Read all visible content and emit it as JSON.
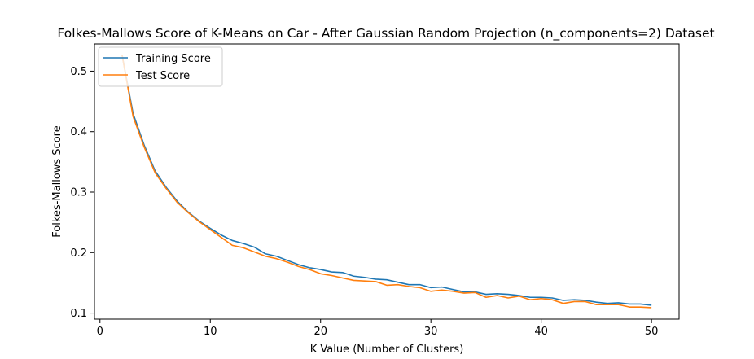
{
  "chart_data": {
    "type": "line",
    "title": "Folkes-Mallows Score of K-Means on Car - After Gaussian Random Projection (n_components=2) Dataset",
    "xlabel": "K Value (Number of Clusters)",
    "ylabel": "Folkes-Mallows Score",
    "xlim": [
      -0.5,
      52.5
    ],
    "ylim": [
      0.09,
      0.545
    ],
    "xticks": [
      0,
      10,
      20,
      30,
      40,
      50
    ],
    "yticks": [
      0.1,
      0.2,
      0.3,
      0.4,
      0.5
    ],
    "grid": false,
    "legend_position": "top-left",
    "x": [
      2,
      3,
      4,
      5,
      6,
      7,
      8,
      9,
      10,
      11,
      12,
      13,
      14,
      15,
      16,
      17,
      18,
      19,
      20,
      21,
      22,
      23,
      24,
      25,
      26,
      27,
      28,
      29,
      30,
      31,
      32,
      33,
      34,
      35,
      36,
      37,
      38,
      39,
      40,
      41,
      42,
      43,
      44,
      45,
      46,
      47,
      48,
      49,
      50
    ],
    "series": [
      {
        "name": "Training Score",
        "color": "#1f77b4",
        "values": [
          0.527,
          0.43,
          0.378,
          0.335,
          0.308,
          0.285,
          0.267,
          0.252,
          0.24,
          0.229,
          0.22,
          0.215,
          0.209,
          0.198,
          0.194,
          0.187,
          0.18,
          0.175,
          0.172,
          0.168,
          0.167,
          0.161,
          0.159,
          0.156,
          0.155,
          0.151,
          0.147,
          0.147,
          0.142,
          0.143,
          0.139,
          0.135,
          0.135,
          0.131,
          0.132,
          0.131,
          0.129,
          0.126,
          0.126,
          0.125,
          0.121,
          0.122,
          0.121,
          0.118,
          0.116,
          0.117,
          0.115,
          0.115,
          0.113
        ]
      },
      {
        "name": "Test Score",
        "color": "#ff7f0e",
        "values": [
          0.527,
          0.425,
          0.375,
          0.332,
          0.306,
          0.283,
          0.266,
          0.251,
          0.238,
          0.225,
          0.212,
          0.208,
          0.201,
          0.194,
          0.19,
          0.184,
          0.177,
          0.172,
          0.165,
          0.162,
          0.158,
          0.154,
          0.153,
          0.152,
          0.146,
          0.147,
          0.144,
          0.142,
          0.136,
          0.138,
          0.136,
          0.133,
          0.134,
          0.126,
          0.129,
          0.125,
          0.128,
          0.122,
          0.124,
          0.122,
          0.116,
          0.119,
          0.119,
          0.114,
          0.114,
          0.114,
          0.11,
          0.11,
          0.109
        ]
      }
    ]
  }
}
